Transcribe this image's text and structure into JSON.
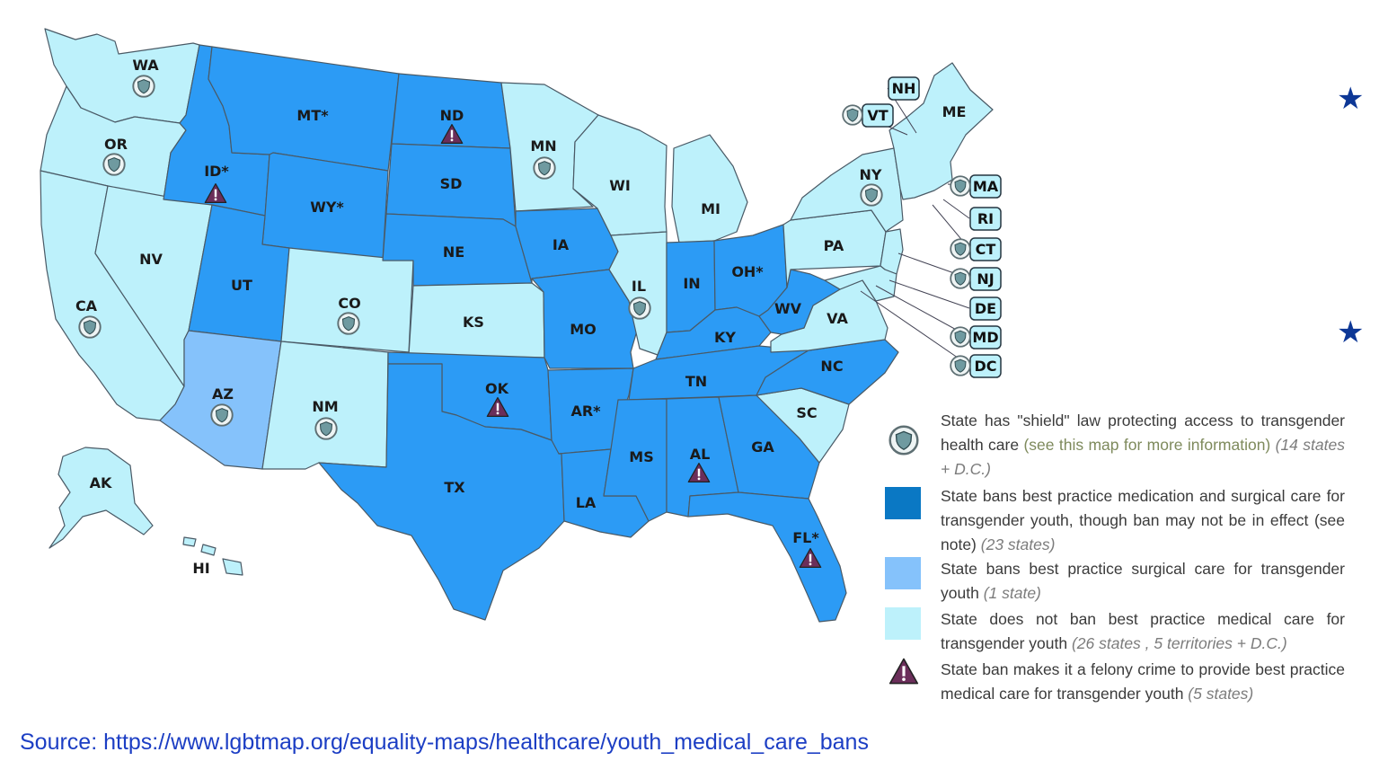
{
  "colors": {
    "full_ban": "#2c9bf5",
    "surgical_ban": "#85c2fb",
    "no_ban": "#bdf1fb",
    "legend_full_ban": "#0a78c4",
    "legend_surgical_ban": "#85c2fb",
    "legend_no_ban": "#bdf1fb",
    "felony": "#6b2e5a",
    "shield": "#5a7f84"
  },
  "states": {
    "WA": {
      "label": "WA",
      "category": "no_ban",
      "shield": true
    },
    "OR": {
      "label": "OR",
      "category": "no_ban",
      "shield": true
    },
    "CA": {
      "label": "CA",
      "category": "no_ban",
      "shield": true
    },
    "NV": {
      "label": "NV",
      "category": "no_ban"
    },
    "ID": {
      "label": "ID*",
      "category": "full_ban",
      "felony": true
    },
    "MT": {
      "label": "MT*",
      "category": "full_ban"
    },
    "WY": {
      "label": "WY*",
      "category": "full_ban"
    },
    "UT": {
      "label": "UT",
      "category": "full_ban"
    },
    "CO": {
      "label": "CO",
      "category": "no_ban",
      "shield": true
    },
    "AZ": {
      "label": "AZ",
      "category": "surgical_ban",
      "shield": true
    },
    "NM": {
      "label": "NM",
      "category": "no_ban",
      "shield": true
    },
    "ND": {
      "label": "ND",
      "category": "full_ban",
      "felony": true
    },
    "SD": {
      "label": "SD",
      "category": "full_ban"
    },
    "NE": {
      "label": "NE",
      "category": "full_ban"
    },
    "KS": {
      "label": "KS",
      "category": "no_ban"
    },
    "OK": {
      "label": "OK",
      "category": "full_ban",
      "felony": true
    },
    "TX": {
      "label": "TX",
      "category": "full_ban"
    },
    "MN": {
      "label": "MN",
      "category": "no_ban",
      "shield": true
    },
    "IA": {
      "label": "IA",
      "category": "full_ban"
    },
    "MO": {
      "label": "MO",
      "category": "full_ban"
    },
    "AR": {
      "label": "AR*",
      "category": "full_ban"
    },
    "LA": {
      "label": "LA",
      "category": "full_ban"
    },
    "WI": {
      "label": "WI",
      "category": "no_ban"
    },
    "IL": {
      "label": "IL",
      "category": "no_ban",
      "shield": true
    },
    "MI": {
      "label": "MI",
      "category": "no_ban"
    },
    "IN": {
      "label": "IN",
      "category": "full_ban"
    },
    "OH": {
      "label": "OH*",
      "category": "full_ban"
    },
    "KY": {
      "label": "KY",
      "category": "full_ban"
    },
    "TN": {
      "label": "TN",
      "category": "full_ban"
    },
    "MS": {
      "label": "MS",
      "category": "full_ban"
    },
    "AL": {
      "label": "AL",
      "category": "full_ban",
      "felony": true
    },
    "GA": {
      "label": "GA",
      "category": "full_ban"
    },
    "FL": {
      "label": "FL*",
      "category": "full_ban",
      "felony": true
    },
    "SC": {
      "label": "SC",
      "category": "no_ban"
    },
    "NC": {
      "label": "NC",
      "category": "full_ban"
    },
    "VA": {
      "label": "VA",
      "category": "no_ban"
    },
    "WV": {
      "label": "WV",
      "category": "full_ban"
    },
    "PA": {
      "label": "PA",
      "category": "no_ban"
    },
    "NY": {
      "label": "NY",
      "category": "no_ban",
      "shield": true
    },
    "ME": {
      "label": "ME",
      "category": "no_ban"
    },
    "AK": {
      "label": "AK",
      "category": "no_ban"
    },
    "HI": {
      "label": "HI",
      "category": "no_ban"
    }
  },
  "callouts": [
    {
      "label": "NH",
      "shield": false
    },
    {
      "label": "VT",
      "shield": true
    },
    {
      "label": "MA",
      "shield": true
    },
    {
      "label": "RI",
      "shield": false
    },
    {
      "label": "CT",
      "shield": true
    },
    {
      "label": "NJ",
      "shield": true
    },
    {
      "label": "DE",
      "shield": false
    },
    {
      "label": "MD",
      "shield": true
    },
    {
      "label": "DC",
      "shield": true
    }
  ],
  "legend": {
    "shield": {
      "text": "State has \"shield\" law protecting access to transgender health care",
      "link": "(see this map for more information)",
      "note": "(14 states + D.C.)"
    },
    "full_ban": {
      "text": "State bans best practice medication and surgical care for transgender youth, though ban may not be in effect (see note)",
      "note": "(23 states)"
    },
    "surgical_ban": {
      "text": "State bans best practice surgical care for transgender youth",
      "note": "(1 state)"
    },
    "no_ban": {
      "text": "State does not ban best practice medical care for transgender youth",
      "note": "(26 states , 5 territories + D.C.)"
    },
    "felony": {
      "text": "State ban makes it a felony crime to provide best practice medical care for transgender youth",
      "note": "(5 states)"
    }
  },
  "source": "Source: https://www.lgbtmap.org/equality-maps/healthcare/youth_medical_care_bans",
  "stars": [
    "★",
    "★"
  ]
}
